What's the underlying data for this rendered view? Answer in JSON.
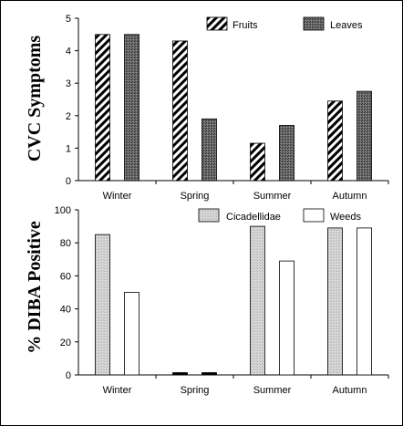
{
  "chart_data": [
    {
      "type": "bar",
      "ylabel": "CVC Symptoms",
      "categories": [
        "Winter",
        "Spring",
        "Summer",
        "Autumn"
      ],
      "ylim": [
        0,
        5
      ],
      "yticks": [
        "0",
        "1",
        "2",
        "3",
        "4",
        "5"
      ],
      "legend_position": "top-right",
      "series": [
        {
          "name": "Fruits",
          "pattern": "diagonal-stripes",
          "values": [
            4.5,
            4.3,
            1.15,
            2.45
          ]
        },
        {
          "name": "Leaves",
          "pattern": "dark-stipple",
          "values": [
            4.5,
            1.9,
            1.7,
            2.75
          ]
        }
      ]
    },
    {
      "type": "bar",
      "ylabel": "% DIBA Positive",
      "categories": [
        "Winter",
        "Spring",
        "Summer",
        "Autumn"
      ],
      "ylim": [
        0,
        100
      ],
      "yticks": [
        "0",
        "20",
        "40",
        "60",
        "80",
        "100"
      ],
      "legend_position": "top-right",
      "series": [
        {
          "name": "Cicadellidae",
          "pattern": "light-stipple",
          "values": [
            85,
            0,
            90,
            89
          ]
        },
        {
          "name": "Weeds",
          "pattern": "white",
          "values": [
            50,
            0,
            69,
            89
          ]
        }
      ]
    }
  ]
}
